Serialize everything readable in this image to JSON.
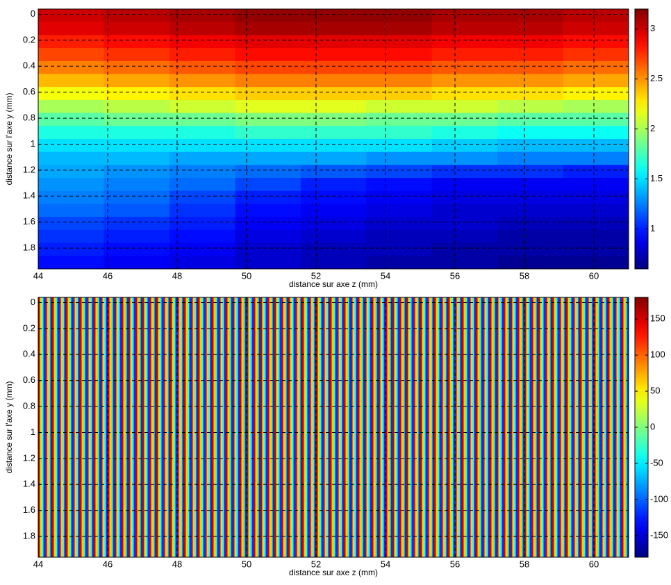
{
  "chart_data": [
    {
      "type": "heatmap",
      "x_label": "distance sur axe z (mm)",
      "y_label": "distance sur l'axe y (mm)",
      "xlim": [
        44,
        61
      ],
      "ylim": [
        -0.04,
        1.96
      ],
      "y_reversed": true,
      "xticks": [
        44,
        46,
        48,
        50,
        52,
        54,
        56,
        58,
        60
      ],
      "yticks": [
        0,
        0.2,
        0.4,
        0.6,
        0.8,
        1,
        1.2,
        1.4,
        1.6,
        1.8
      ],
      "grid": true,
      "colormap": "jet",
      "clim": [
        0.6,
        3.2
      ],
      "cticks": [
        1,
        1.5,
        2,
        2.5,
        3
      ],
      "values": [
        [
          3.0,
          3.05,
          3.1,
          3.15,
          3.15,
          3.15,
          3.1,
          3.1,
          3.05
        ],
        [
          2.95,
          3.0,
          3.05,
          3.1,
          3.1,
          3.1,
          3.05,
          3.05,
          3.0
        ],
        [
          2.8,
          2.85,
          2.9,
          2.95,
          2.95,
          2.95,
          2.9,
          2.9,
          2.85
        ],
        [
          2.7,
          2.75,
          2.8,
          2.85,
          2.85,
          2.85,
          2.8,
          2.8,
          2.75
        ],
        [
          2.55,
          2.6,
          2.65,
          2.7,
          2.7,
          2.7,
          2.65,
          2.65,
          2.6
        ],
        [
          2.4,
          2.45,
          2.5,
          2.55,
          2.55,
          2.55,
          2.5,
          2.5,
          2.45
        ],
        [
          2.2,
          2.25,
          2.3,
          2.35,
          2.35,
          2.35,
          2.3,
          2.3,
          2.25
        ],
        [
          2.0,
          2.05,
          2.1,
          2.15,
          2.15,
          2.1,
          2.1,
          2.05,
          2.0
        ],
        [
          1.8,
          1.85,
          1.85,
          1.9,
          1.9,
          1.85,
          1.85,
          1.8,
          1.8
        ],
        [
          1.65,
          1.65,
          1.65,
          1.7,
          1.7,
          1.7,
          1.65,
          1.6,
          1.6
        ],
        [
          1.5,
          1.5,
          1.5,
          1.5,
          1.5,
          1.5,
          1.45,
          1.4,
          1.4
        ],
        [
          1.4,
          1.4,
          1.35,
          1.35,
          1.35,
          1.3,
          1.3,
          1.25,
          1.25
        ],
        [
          1.35,
          1.3,
          1.25,
          1.2,
          1.15,
          1.1,
          1.05,
          1.05,
          1.0
        ],
        [
          1.3,
          1.25,
          1.2,
          1.1,
          1.0,
          0.95,
          0.9,
          0.9,
          0.9
        ],
        [
          1.25,
          1.2,
          1.1,
          1.0,
          0.95,
          0.9,
          0.85,
          0.85,
          0.85
        ],
        [
          1.2,
          1.15,
          1.05,
          0.95,
          0.9,
          0.85,
          0.8,
          0.8,
          0.8
        ],
        [
          1.1,
          1.05,
          1.0,
          0.9,
          0.85,
          0.8,
          0.8,
          0.75,
          0.75
        ],
        [
          1.05,
          1.0,
          0.95,
          0.85,
          0.8,
          0.75,
          0.75,
          0.7,
          0.7
        ],
        [
          1.0,
          0.95,
          0.9,
          0.8,
          0.75,
          0.75,
          0.7,
          0.7,
          0.7
        ],
        [
          0.95,
          0.9,
          0.85,
          0.8,
          0.75,
          0.7,
          0.7,
          0.65,
          0.65
        ]
      ]
    },
    {
      "type": "heatmap",
      "x_label": "distance sur axe z (mm)",
      "y_label": "distance sur l'axe y (mm)",
      "xlim": [
        44,
        61
      ],
      "ylim": [
        -0.04,
        1.96
      ],
      "y_reversed": true,
      "xticks": [
        44,
        46,
        48,
        50,
        52,
        54,
        56,
        58,
        60
      ],
      "yticks": [
        0,
        0.2,
        0.4,
        0.6,
        0.8,
        1,
        1.2,
        1.4,
        1.6,
        1.8
      ],
      "grid": true,
      "colormap": "jet",
      "clim": [
        -180,
        180
      ],
      "cticks": [
        -150,
        -100,
        -50,
        0,
        50,
        100,
        150
      ],
      "values": [
        [
          150,
          60,
          -30,
          -120,
          150,
          60,
          -30,
          -120,
          150,
          60,
          -30,
          -120,
          150,
          60,
          -30,
          -120,
          150,
          60,
          -30,
          -120,
          150,
          60,
          -30,
          -120,
          150,
          60,
          -30,
          -120,
          150,
          60,
          -30,
          -120,
          150,
          60,
          -30,
          -120,
          150,
          60,
          -30,
          -120,
          150,
          60,
          -30,
          -120,
          150,
          60,
          -30,
          -120,
          150,
          60,
          -30,
          -120,
          150,
          60,
          -30,
          -120,
          150,
          60,
          -30,
          -120,
          150,
          60,
          -30,
          -120,
          150,
          60,
          -30,
          -120,
          150,
          60,
          -30,
          -120,
          150,
          60,
          -30,
          -120,
          150,
          60,
          -30,
          -120,
          150,
          60,
          -30,
          -120,
          150,
          60,
          -30,
          -120,
          150,
          60,
          -30,
          -120,
          150,
          60,
          -30,
          -120,
          150,
          60,
          -30,
          -120,
          150,
          60,
          -30,
          -120,
          150,
          60,
          -30,
          -120,
          150,
          60,
          -30,
          -120,
          150,
          60,
          -30,
          -120,
          150,
          60,
          -30,
          -120,
          150,
          60,
          -30,
          -120,
          150,
          60,
          -30,
          -120,
          150,
          60,
          -30,
          -120,
          150,
          60,
          -30,
          -120,
          150,
          60,
          -30,
          -120,
          150,
          60,
          -30,
          -120,
          150,
          60,
          -30,
          -120,
          150,
          60,
          -30,
          -120,
          150,
          60,
          -30,
          -120,
          150,
          60,
          -30,
          -120,
          150,
          60,
          -30,
          -120,
          150,
          60,
          -30,
          -120,
          150,
          60,
          -30,
          -120,
          150,
          60,
          -30,
          -120,
          150,
          60,
          -30,
          -120,
          150,
          60,
          -30,
          -120,
          150,
          60,
          -30,
          -120,
          150,
          60,
          -30,
          -120,
          150,
          60,
          -30,
          -120,
          150,
          60,
          -30,
          -120,
          150,
          60,
          -30,
          -120,
          150,
          60,
          -30,
          -120,
          150,
          60,
          -30,
          -120,
          150,
          60,
          -30,
          -120,
          150,
          60,
          -30,
          -120,
          150,
          60,
          -30,
          -120,
          150,
          60,
          -30,
          -120,
          150,
          60,
          -30,
          -120,
          150,
          60,
          -30,
          -120,
          150,
          60,
          -30,
          -120,
          150,
          60,
          -30,
          -120,
          150,
          60,
          -30,
          -120,
          150,
          60,
          -30,
          -120,
          150,
          60,
          -30,
          -120,
          150,
          60,
          -30,
          -120,
          150,
          60,
          -30,
          -120,
          150,
          60,
          -30,
          -120,
          150,
          60,
          -30,
          -120,
          150,
          60,
          -30,
          -120,
          150,
          60,
          -30,
          -120,
          150,
          60,
          -30,
          -120,
          150,
          60,
          -30,
          -120,
          150,
          60,
          -30,
          -120,
          150,
          60,
          -30,
          -120,
          150,
          60,
          -30,
          -120,
          150,
          60,
          -30,
          -120,
          150,
          60,
          -30,
          -120,
          150,
          60,
          -30,
          -120,
          150,
          60,
          -30,
          -120,
          150,
          60,
          -30,
          -120,
          150,
          60,
          -30,
          -120,
          150,
          60,
          -30,
          -120,
          150,
          60,
          -30,
          -120,
          150,
          60,
          -30,
          -120,
          150,
          60,
          -30,
          -120
        ]
      ]
    }
  ]
}
